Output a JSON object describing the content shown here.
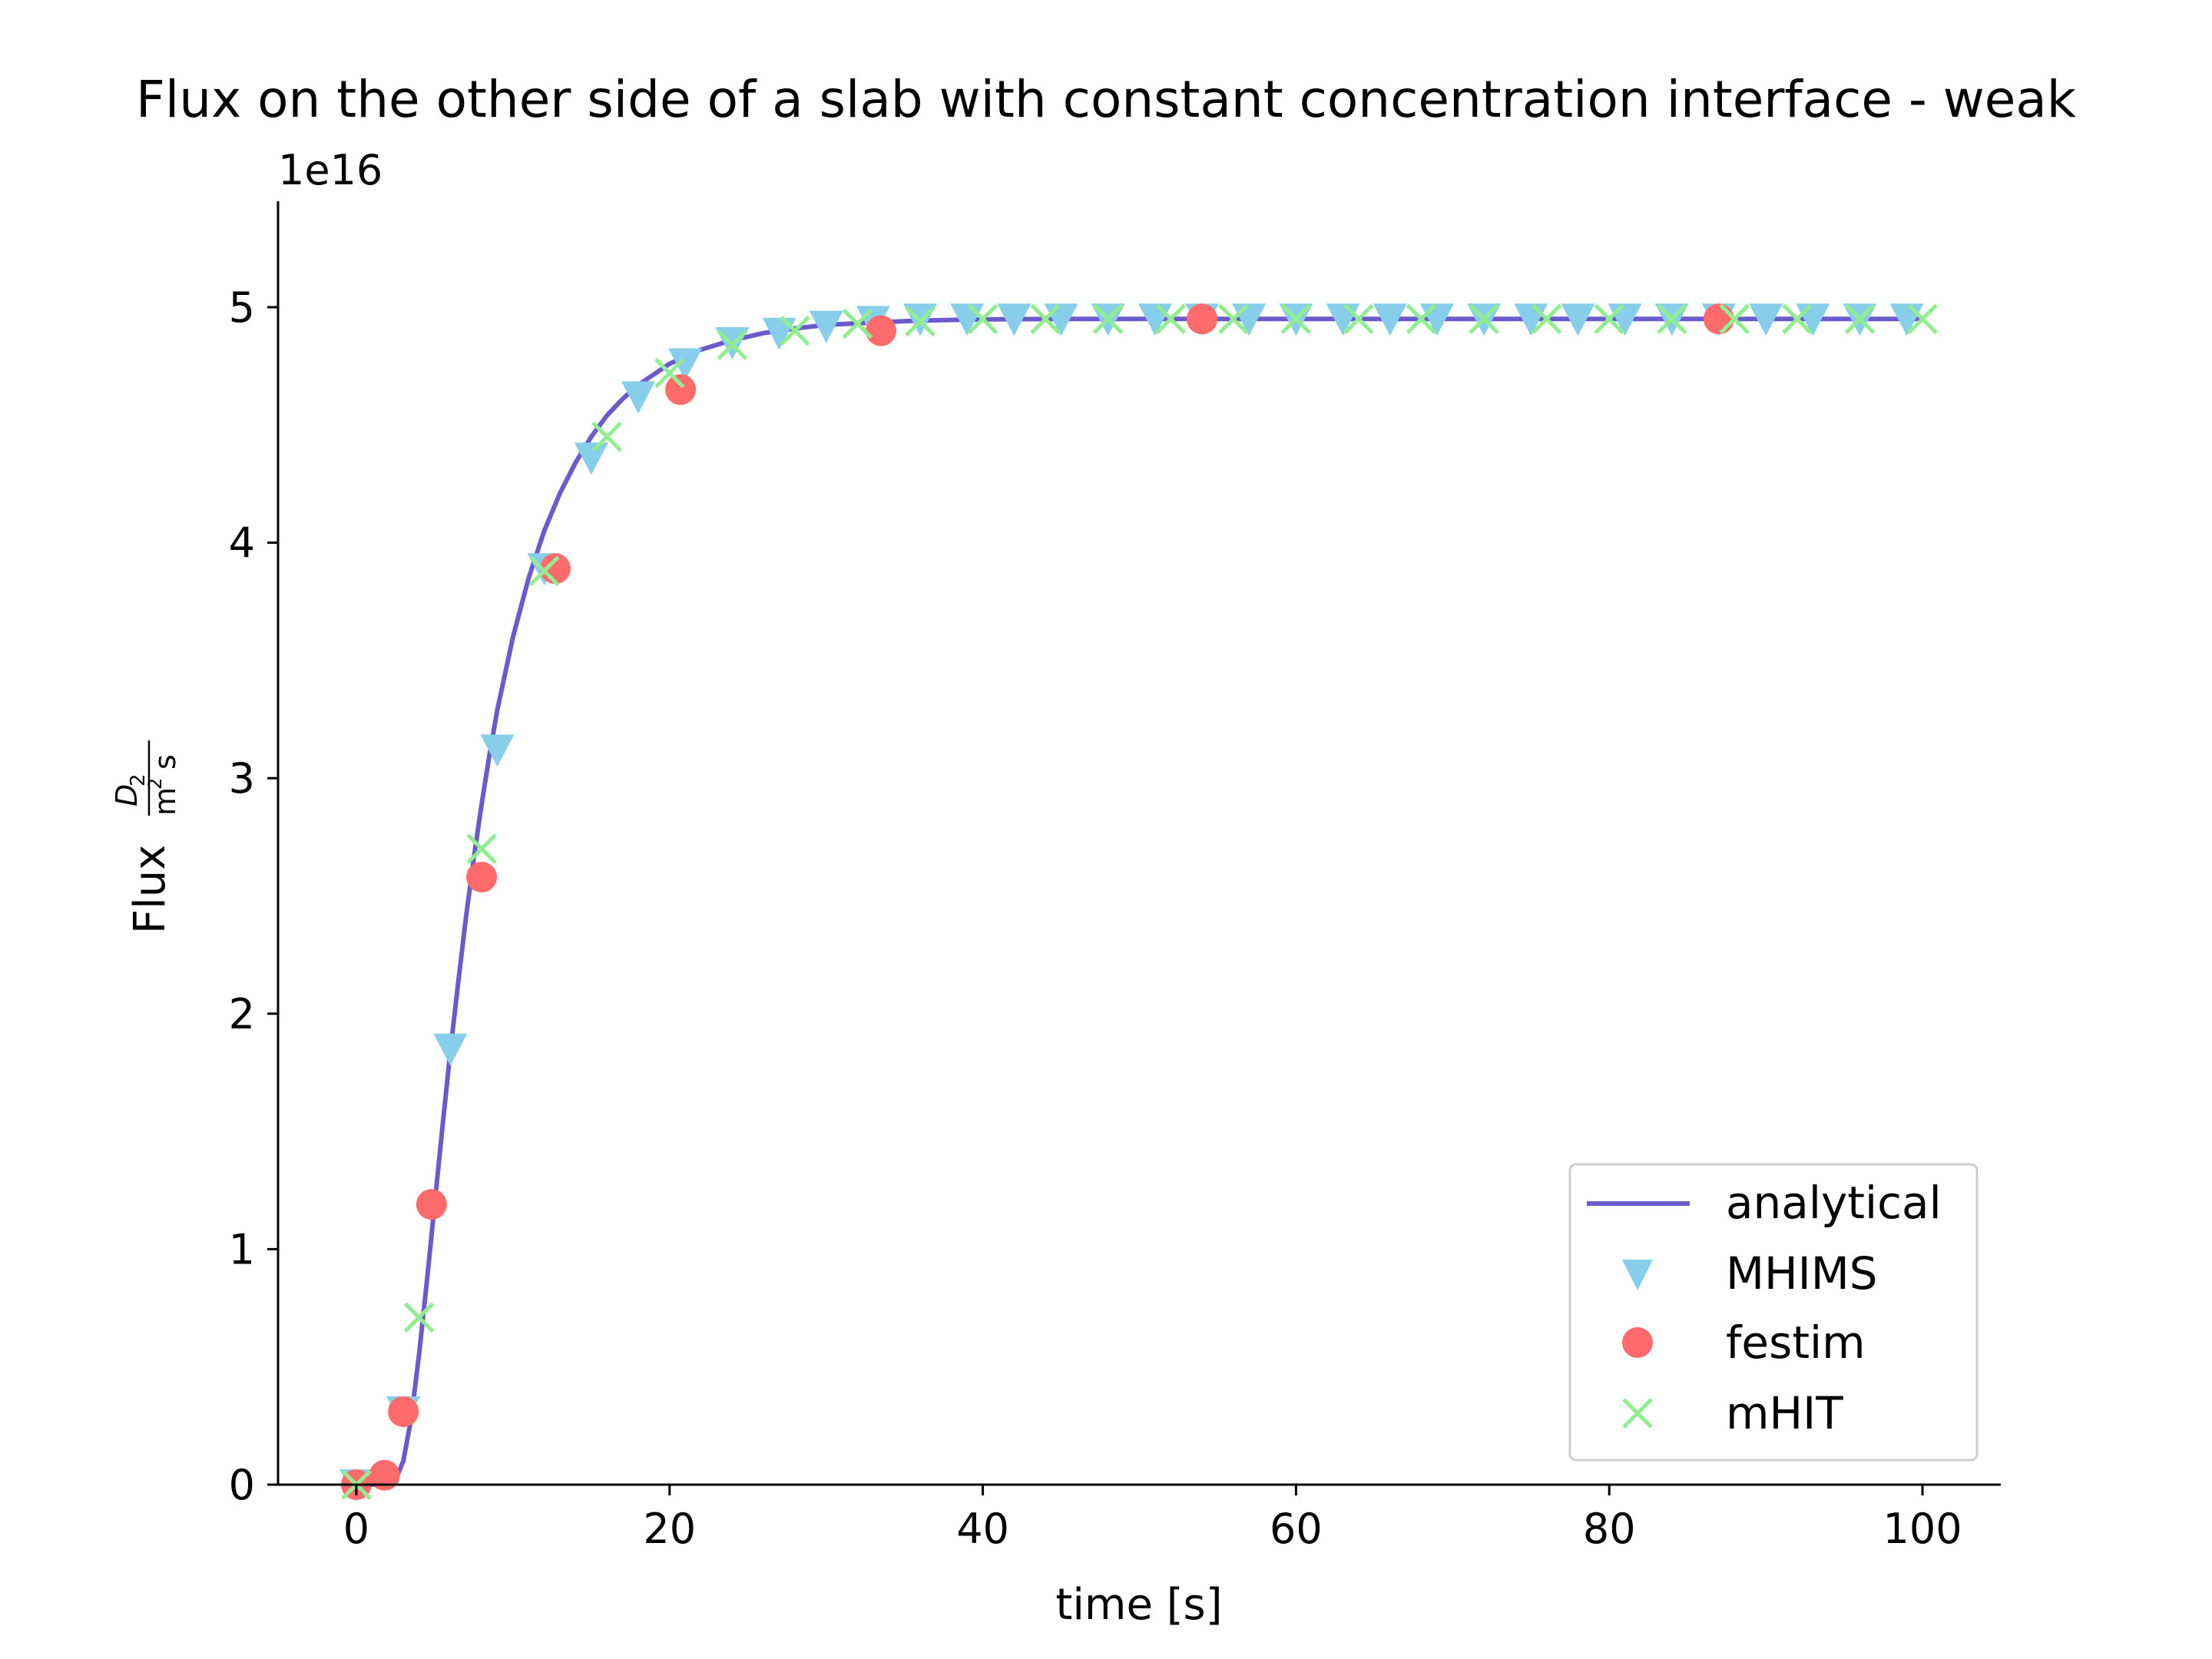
{
  "chart_data": {
    "type": "line",
    "title": "Flux on the other side of a slab with constant concentration interface - weak",
    "xlabel": "time [s]",
    "ylabel": "Flux",
    "ylabel_unit_numerator": "D",
    "ylabel_unit_numerator_sub": "2",
    "ylabel_unit_denominator": "m",
    "ylabel_unit_denominator_sup": "2",
    "ylabel_unit_denominator_tail": "s",
    "y_offset_text": "1e16",
    "y_multiplier": 1e+16,
    "xlim": [
      -5,
      105
    ],
    "ylim": [
      0,
      5.45
    ],
    "xticks": [
      0,
      20,
      40,
      60,
      80,
      100
    ],
    "yticks": [
      0,
      1,
      2,
      3,
      4,
      5
    ],
    "grid": false,
    "legend_position": "lower-right",
    "series": [
      {
        "name": "analytical",
        "kind": "line",
        "color": "#6a5acd",
        "x": [
          0,
          1,
          2,
          2.5,
          3,
          3.5,
          4,
          4.5,
          5,
          5.5,
          6,
          6.5,
          7,
          7.5,
          8,
          8.5,
          9,
          10,
          11,
          12,
          13,
          14,
          15,
          16,
          17,
          18,
          20,
          22,
          24,
          26,
          28,
          30,
          33,
          36,
          40,
          45,
          50,
          60,
          70,
          80,
          90,
          100
        ],
        "y": [
          0,
          0.0,
          0.0,
          0.02,
          0.1,
          0.28,
          0.55,
          0.86,
          1.19,
          1.52,
          1.84,
          2.13,
          2.41,
          2.66,
          2.89,
          3.1,
          3.29,
          3.6,
          3.85,
          4.05,
          4.21,
          4.34,
          4.45,
          4.54,
          4.61,
          4.67,
          4.76,
          4.82,
          4.86,
          4.89,
          4.91,
          4.925,
          4.935,
          4.943,
          4.948,
          4.95,
          4.95,
          4.95,
          4.95,
          4.95,
          4.95,
          4.95
        ]
      },
      {
        "name": "MHIMS",
        "kind": "marker",
        "marker": "triangle-down",
        "color": "#87ceeb",
        "x": [
          0,
          3,
          6,
          9,
          12,
          15,
          18,
          21,
          24,
          27,
          30,
          33,
          36,
          39,
          42,
          45,
          48,
          51,
          54,
          57,
          60,
          63,
          66,
          69,
          72,
          75,
          78,
          81,
          84,
          87,
          90,
          93,
          96,
          99
        ],
        "y": [
          0.0,
          0.31,
          1.85,
          3.12,
          3.89,
          4.36,
          4.62,
          4.76,
          4.85,
          4.89,
          4.92,
          4.94,
          4.95,
          4.95,
          4.95,
          4.95,
          4.95,
          4.95,
          4.95,
          4.95,
          4.95,
          4.95,
          4.95,
          4.95,
          4.95,
          4.95,
          4.95,
          4.95,
          4.95,
          4.95,
          4.95,
          4.95,
          4.95,
          4.95
        ]
      },
      {
        "name": "festim",
        "kind": "marker",
        "marker": "circle",
        "color": "#ff6b6b",
        "x": [
          0,
          1.8,
          3,
          4.8,
          8,
          12.7,
          20.7,
          33.5,
          54,
          87
        ],
        "y": [
          0.0,
          0.04,
          0.31,
          1.19,
          2.58,
          3.89,
          4.65,
          4.9,
          4.95,
          4.95
        ]
      },
      {
        "name": "mHIT",
        "kind": "marker",
        "marker": "x",
        "color": "#90ee90",
        "x": [
          0,
          4,
          8,
          12,
          16,
          20,
          24,
          28,
          32,
          36,
          40,
          44,
          48,
          52,
          56,
          60,
          64,
          68,
          72,
          76,
          80,
          84,
          88,
          92,
          96,
          100
        ],
        "y": [
          0.0,
          0.71,
          2.7,
          3.88,
          4.45,
          4.72,
          4.84,
          4.9,
          4.93,
          4.94,
          4.95,
          4.95,
          4.95,
          4.95,
          4.95,
          4.95,
          4.95,
          4.95,
          4.95,
          4.95,
          4.95,
          4.95,
          4.95,
          4.95,
          4.95,
          4.95
        ]
      }
    ]
  }
}
